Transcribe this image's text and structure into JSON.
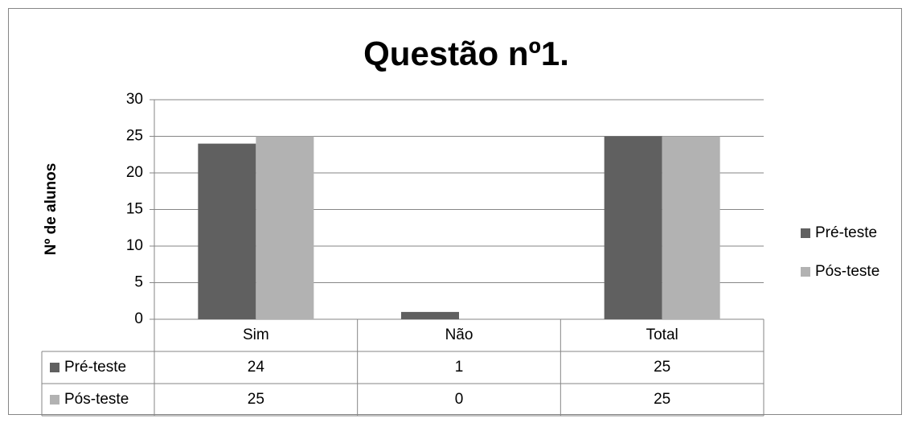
{
  "chart_data": {
    "type": "bar",
    "title": "Questão nº1.",
    "y_label": "Nº de alunos",
    "categories": [
      "Sim",
      "Não",
      "Total"
    ],
    "series": [
      {
        "name": "Pré-teste",
        "color": "#606060",
        "values": [
          24,
          1,
          25
        ]
      },
      {
        "name": "Pós-teste",
        "color": "#b2b2b2",
        "values": [
          25,
          0,
          25
        ]
      }
    ],
    "ylim": [
      0,
      30
    ],
    "yticks": [
      0,
      5,
      10,
      15,
      20,
      25,
      30
    ],
    "grid": true,
    "legend": "right",
    "data_table": true
  }
}
